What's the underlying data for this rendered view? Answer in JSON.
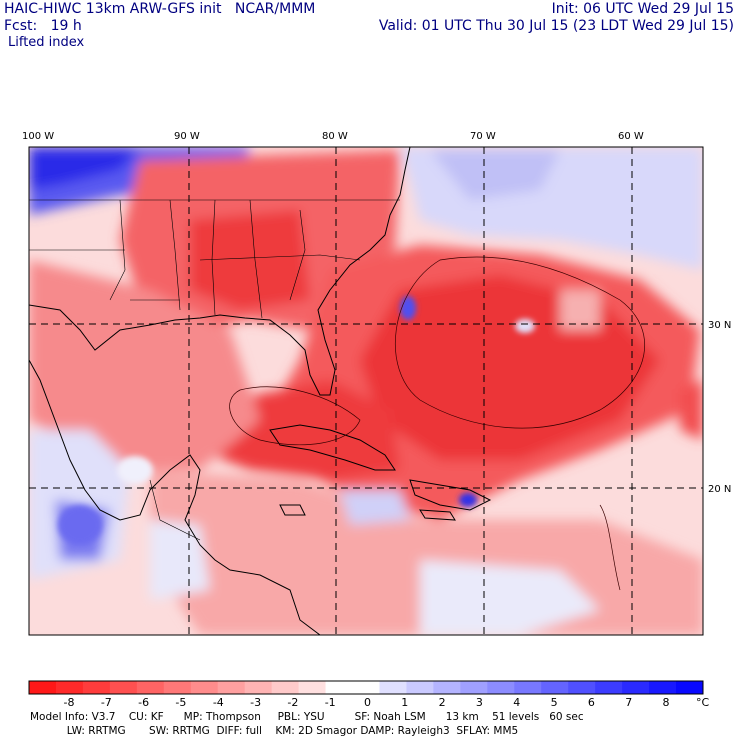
{
  "header": {
    "title": "HAIC-HIWC 13km ARW-GFS init   NCAR/MMM",
    "fcst": "Fcst:   19 h",
    "init": "Init: 06 UTC Wed 29 Jul 15",
    "valid": "Valid: 01 UTC Thu 30 Jul 15 (23 LDT Wed 29 Jul 15)",
    "field": "Lifted index"
  },
  "map": {
    "lon_labels": [
      {
        "text": "100 W",
        "lon": -100
      },
      {
        "text": "90 W",
        "lon": -90
      },
      {
        "text": "80 W",
        "lon": -80
      },
      {
        "text": "70 W",
        "lon": -70
      },
      {
        "text": "60 W",
        "lon": -60
      }
    ],
    "lat_labels": [
      {
        "text": "30 N",
        "lat": 30
      },
      {
        "text": "20 N",
        "lat": 20
      }
    ],
    "colors": {
      "strong_unstable": "#e8232a",
      "unstable": "#f0545a",
      "weak_unstable": "#f8a0a0",
      "neutral": "#fde0e0",
      "stable": "#c8c8f8",
      "very_stable": "#4848f0",
      "extreme_stable": "#1010e8",
      "land_border": "#000000",
      "grid": "#000000"
    }
  },
  "colorbar": {
    "labels": [
      "-8",
      "-7",
      "-6",
      "-5",
      "-4",
      "-3",
      "-2",
      "-1",
      "0",
      "1",
      "2",
      "3",
      "4",
      "5",
      "6",
      "7",
      "8"
    ],
    "unit": "°C",
    "colors": [
      "#ff1818",
      "#ff2a2a",
      "#ff3c3c",
      "#ff5050",
      "#ff6464",
      "#ff7878",
      "#ff8c8c",
      "#ffa0a0",
      "#ffb4b4",
      "#ffcaca",
      "#ffe0e0",
      "#ffffff",
      "#ffffff",
      "#e0e0ff",
      "#cacaff",
      "#b4b4ff",
      "#a0a0ff",
      "#8c8cff",
      "#7878ff",
      "#6464ff",
      "#5050ff",
      "#3c3cff",
      "#2a2aff",
      "#1818ff",
      "#0808ff"
    ]
  },
  "footer": {
    "line1": "Model Info: V3.7    CU: KF      MP: Thompson     PBL: YSU         SF: Noah LSM      13 km    51 levels   60 sec",
    "line2": "           LW: RRTMG       SW: RRTMG  DIFF: full    KM: 2D Smagor DAMP: Rayleigh3  SFLAY: MM5"
  }
}
